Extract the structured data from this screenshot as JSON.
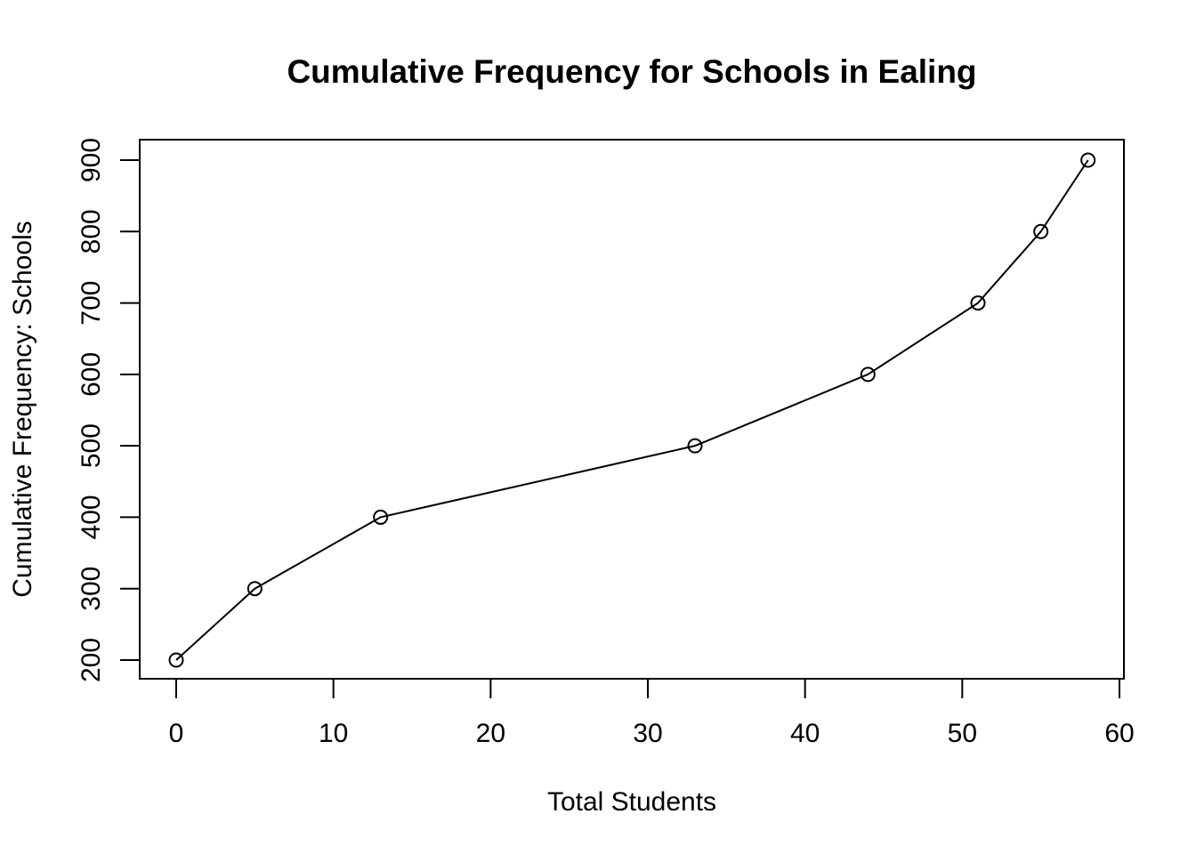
{
  "chart_data": {
    "type": "line",
    "title": "Cumulative Frequency for Schools in Ealing",
    "xlabel": "Total Students",
    "ylabel": "Cumulative Frequency: Schools",
    "xlim": [
      0,
      60
    ],
    "ylim": [
      200,
      900
    ],
    "x_ticks": [
      0,
      10,
      20,
      30,
      40,
      50,
      60
    ],
    "y_ticks": [
      200,
      300,
      400,
      500,
      600,
      700,
      800,
      900
    ],
    "grid": false,
    "markers": "open-circle",
    "line_color": "#000000",
    "series": [
      {
        "x": [
          0,
          5,
          13,
          33,
          44,
          51,
          55,
          58
        ],
        "values": [
          200,
          300,
          400,
          500,
          600,
          700,
          800,
          900
        ]
      }
    ]
  }
}
